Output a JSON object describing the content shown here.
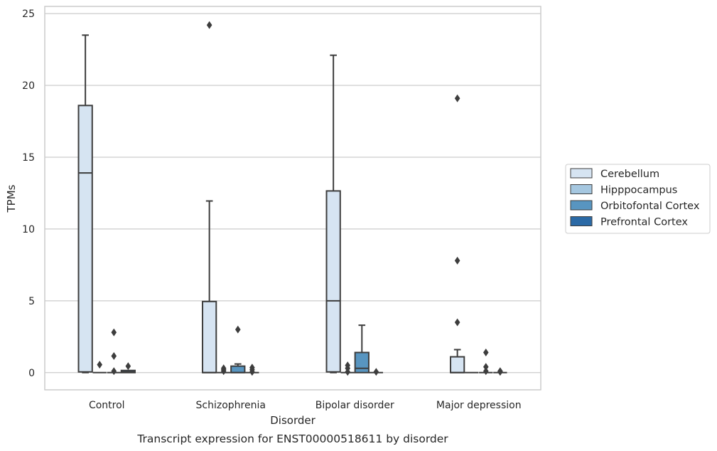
{
  "chart_data": {
    "type": "box",
    "title": "",
    "caption": "Transcript expression for ENST00000518611 by disorder",
    "xlabel": "Disorder",
    "ylabel": "TPMs",
    "ylim": [
      -1.2,
      25.5
    ],
    "yticks": [
      0,
      5,
      10,
      15,
      20,
      25
    ],
    "grid": true,
    "legend_position": "right",
    "categories": [
      "Control",
      "Schizophrenia",
      "Bipolar disorder",
      "Major depression"
    ],
    "series": [
      {
        "name": "Cerebellum",
        "color": "#d6e4f2",
        "boxes": [
          {
            "whisker_low": 0.0,
            "q1": 0.05,
            "median": 13.9,
            "q3": 18.6,
            "whisker_high": 23.5,
            "outliers": []
          },
          {
            "whisker_low": 0.0,
            "q1": 0.0,
            "median": 0.0,
            "q3": 4.95,
            "whisker_high": 11.95,
            "outliers": [
              24.2
            ]
          },
          {
            "whisker_low": 0.0,
            "q1": 0.05,
            "median": 5.0,
            "q3": 12.65,
            "whisker_high": 22.1,
            "outliers": []
          },
          {
            "whisker_low": 0.0,
            "q1": 0.0,
            "median": 0.0,
            "q3": 1.1,
            "whisker_high": 1.6,
            "outliers": [
              3.5,
              7.8,
              19.1
            ]
          }
        ]
      },
      {
        "name": "Hipppocampus",
        "color": "#a5c7e0",
        "boxes": [
          {
            "whisker_low": 0.0,
            "q1": 0.0,
            "median": 0.0,
            "q3": 0.0,
            "whisker_high": 0.0,
            "outliers": [
              0.55
            ]
          },
          {
            "whisker_low": 0.0,
            "q1": 0.0,
            "median": 0.0,
            "q3": 0.0,
            "whisker_high": 0.0,
            "outliers": [
              0.1,
              0.2,
              0.3
            ]
          },
          {
            "whisker_low": 0.0,
            "q1": 0.0,
            "median": 0.0,
            "q3": 0.0,
            "whisker_high": 0.0,
            "outliers": [
              0.05,
              0.3,
              0.5
            ]
          },
          {
            "whisker_low": 0.0,
            "q1": 0.0,
            "median": 0.0,
            "q3": 0.0,
            "whisker_high": 0.0,
            "outliers": []
          }
        ]
      },
      {
        "name": "Orbitofontal Cortex",
        "color": "#5895c0",
        "boxes": [
          {
            "whisker_low": 0.0,
            "q1": 0.0,
            "median": 0.0,
            "q3": 0.0,
            "whisker_high": 0.0,
            "outliers": [
              0.1,
              1.15,
              2.8
            ]
          },
          {
            "whisker_low": 0.0,
            "q1": 0.0,
            "median": 0.0,
            "q3": 0.45,
            "whisker_high": 0.6,
            "outliers": [
              3.0
            ]
          },
          {
            "whisker_low": 0.0,
            "q1": 0.0,
            "median": 0.3,
            "q3": 1.4,
            "whisker_high": 3.3,
            "outliers": []
          },
          {
            "whisker_low": 0.0,
            "q1": 0.0,
            "median": 0.0,
            "q3": 0.0,
            "whisker_high": 0.0,
            "outliers": [
              0.1,
              0.4,
              1.4
            ]
          }
        ]
      },
      {
        "name": "Prefrontal Cortex",
        "color": "#2b6aa6",
        "boxes": [
          {
            "whisker_low": 0.0,
            "q1": 0.0,
            "median": 0.05,
            "q3": 0.15,
            "whisker_high": 0.15,
            "outliers": [
              0.45
            ]
          },
          {
            "whisker_low": 0.0,
            "q1": 0.0,
            "median": 0.0,
            "q3": 0.0,
            "whisker_high": 0.0,
            "outliers": [
              0.05,
              0.2,
              0.35
            ]
          },
          {
            "whisker_low": 0.0,
            "q1": 0.0,
            "median": 0.0,
            "q3": 0.0,
            "whisker_high": 0.0,
            "outliers": [
              0.05
            ]
          },
          {
            "whisker_low": 0.0,
            "q1": 0.0,
            "median": 0.0,
            "q3": 0.0,
            "whisker_high": 0.0,
            "outliers": [
              0.05,
              0.1
            ]
          }
        ]
      }
    ]
  }
}
